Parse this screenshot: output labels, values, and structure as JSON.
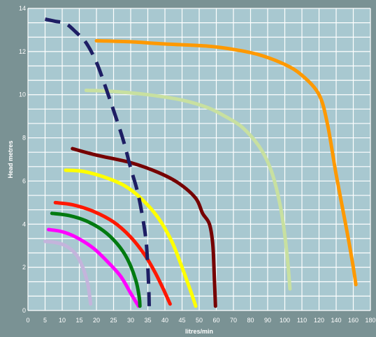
{
  "chart_data": {
    "type": "line",
    "xlabel": "litres/min",
    "ylabel": "Head metres",
    "grid": true,
    "x_tick_labels": [
      "0",
      "5",
      "10",
      "15",
      "20",
      "25",
      "30",
      "35",
      "40",
      "45",
      "50",
      "60",
      "70",
      "80",
      "90",
      "100",
      "110",
      "120",
      "140",
      "160",
      "180"
    ],
    "y_tick_labels": [
      "0",
      "2",
      "4",
      "6",
      "8",
      "10",
      "12",
      "14"
    ],
    "colors": {
      "background": "#7a9294",
      "plot_area": "#a8c8d0",
      "grid": "#ffffff"
    },
    "series": [
      {
        "color": "#c4b4dc",
        "dashed": false,
        "points": [
          [
            5,
            3.2
          ],
          [
            8,
            3.15
          ],
          [
            11,
            3.0
          ],
          [
            14,
            2.6
          ],
          [
            16,
            2.0
          ],
          [
            17.5,
            1.2
          ],
          [
            18.3,
            0.3
          ]
        ]
      },
      {
        "color": "#ff00ff",
        "dashed": false,
        "points": [
          [
            6,
            3.75
          ],
          [
            10,
            3.65
          ],
          [
            14,
            3.4
          ],
          [
            19,
            2.9
          ],
          [
            23,
            2.3
          ],
          [
            27,
            1.6
          ],
          [
            30,
            0.8
          ],
          [
            32.3,
            0.2
          ]
        ]
      },
      {
        "color": "#007a10",
        "dashed": false,
        "points": [
          [
            7,
            4.5
          ],
          [
            12,
            4.4
          ],
          [
            17,
            4.15
          ],
          [
            22,
            3.7
          ],
          [
            26,
            3.1
          ],
          [
            29,
            2.4
          ],
          [
            31.5,
            1.4
          ],
          [
            32.5,
            0.6
          ],
          [
            32.7,
            0.2
          ]
        ]
      },
      {
        "color": "#ff1800",
        "dashed": false,
        "points": [
          [
            8,
            5.0
          ],
          [
            13,
            4.9
          ],
          [
            19,
            4.6
          ],
          [
            25,
            4.1
          ],
          [
            30,
            3.4
          ],
          [
            34,
            2.6
          ],
          [
            37,
            1.8
          ],
          [
            39.5,
            1.0
          ],
          [
            41.5,
            0.3
          ]
        ]
      },
      {
        "color": "#ffff00",
        "dashed": false,
        "points": [
          [
            11,
            6.5
          ],
          [
            16,
            6.45
          ],
          [
            22,
            6.2
          ],
          [
            28,
            5.8
          ],
          [
            33,
            5.2
          ],
          [
            38,
            4.3
          ],
          [
            42,
            3.2
          ],
          [
            45,
            2.0
          ],
          [
            47.5,
            0.9
          ],
          [
            49,
            0.2
          ]
        ]
      },
      {
        "color": "#760000",
        "dashed": false,
        "points": [
          [
            13,
            7.5
          ],
          [
            20,
            7.2
          ],
          [
            30,
            6.85
          ],
          [
            38,
            6.4
          ],
          [
            44,
            5.9
          ],
          [
            49,
            5.2
          ],
          [
            52,
            4.5
          ],
          [
            56,
            4.0
          ],
          [
            58,
            3.0
          ],
          [
            59,
            1.2
          ],
          [
            59.5,
            0.2
          ]
        ]
      },
      {
        "color": "#c8e0a0",
        "dashed": false,
        "points": [
          [
            17,
            10.2
          ],
          [
            25,
            10.15
          ],
          [
            35,
            10.0
          ],
          [
            45,
            9.75
          ],
          [
            55,
            9.4
          ],
          [
            65,
            9.0
          ],
          [
            75,
            8.5
          ],
          [
            85,
            7.6
          ],
          [
            92,
            6.5
          ],
          [
            97,
            5.0
          ],
          [
            100,
            3.5
          ],
          [
            102,
            2.0
          ],
          [
            103,
            1.0
          ]
        ]
      },
      {
        "color": "#ff9900",
        "dashed": false,
        "points": [
          [
            20,
            12.5
          ],
          [
            30,
            12.45
          ],
          [
            40,
            12.35
          ],
          [
            55,
            12.25
          ],
          [
            70,
            12.1
          ],
          [
            85,
            11.85
          ],
          [
            100,
            11.4
          ],
          [
            110,
            10.9
          ],
          [
            120,
            10.0
          ],
          [
            130,
            8.6
          ],
          [
            140,
            6.3
          ],
          [
            152,
            3.8
          ],
          [
            160,
            2.0
          ],
          [
            163,
            1.2
          ]
        ]
      },
      {
        "color": "#1e1e64",
        "dashed": true,
        "points": [
          [
            5,
            13.5
          ],
          [
            8,
            13.4
          ],
          [
            11,
            13.3
          ],
          [
            14,
            12.9
          ],
          [
            17,
            12.4
          ],
          [
            20,
            11.5
          ],
          [
            23,
            10.2
          ],
          [
            26,
            8.8
          ],
          [
            28,
            7.8
          ],
          [
            30,
            6.6
          ],
          [
            32,
            5.5
          ],
          [
            33.5,
            4.3
          ],
          [
            34.5,
            3.2
          ],
          [
            35,
            2.0
          ],
          [
            35.3,
            0.9
          ],
          [
            35.4,
            0.2
          ]
        ]
      }
    ]
  }
}
